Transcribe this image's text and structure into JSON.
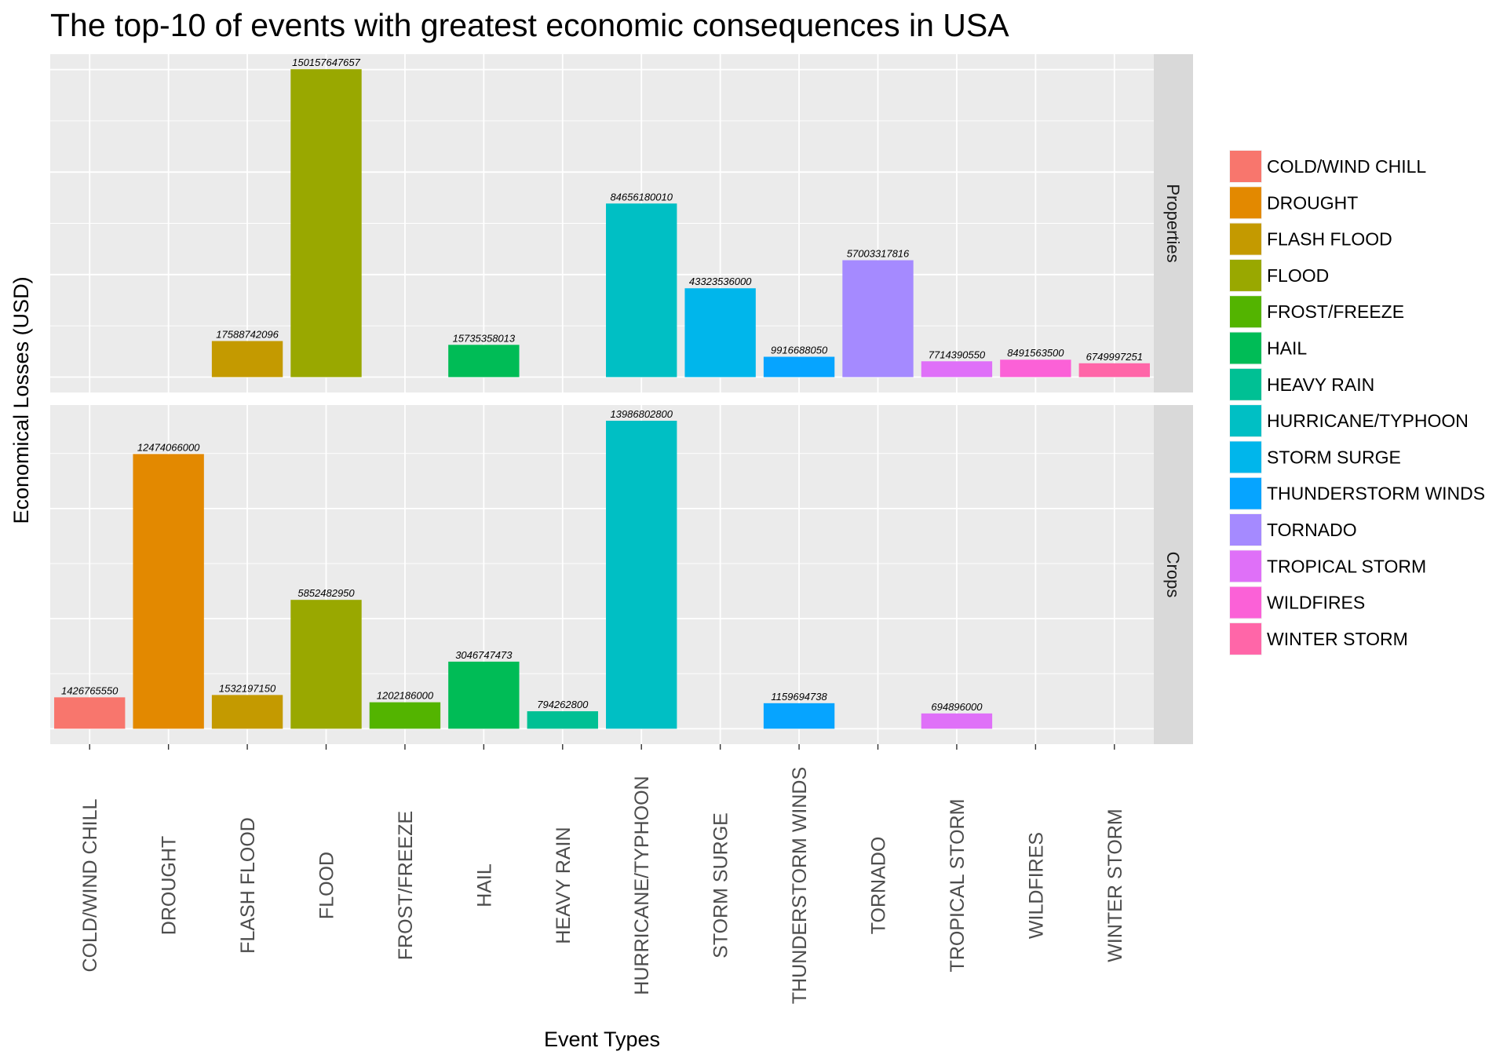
{
  "chart_data": {
    "type": "bar",
    "title": "The top-10 of events with greatest economic consequences in USA",
    "xlabel": "Event Types",
    "ylabel": "Economical Losses (USD)",
    "categories": [
      "COLD/WIND CHILL",
      "DROUGHT",
      "FLASH FLOOD",
      "FLOOD",
      "FROST/FREEZE",
      "HAIL",
      "HEAVY RAIN",
      "HURRICANE/TYPHOON",
      "STORM SURGE",
      "THUNDERSTORM WINDS",
      "TORNADO",
      "TROPICAL STORM",
      "WILDFIRES",
      "WINTER STORM"
    ],
    "colors": [
      "#F8766D",
      "#E38900",
      "#C49A00",
      "#99A800",
      "#53B400",
      "#00BC56",
      "#00C094",
      "#00BFC4",
      "#00B6EB",
      "#06A4FF",
      "#A58AFF",
      "#DF70F8",
      "#FB61D7",
      "#FF66A8"
    ],
    "facets": [
      {
        "label": "Properties",
        "values": [
          null,
          null,
          17588742096,
          150157647657,
          null,
          15735358013,
          null,
          84656180010,
          43323536000,
          9916688050,
          57003317816,
          7714390550,
          8491563500,
          6749997251
        ],
        "labels": [
          "",
          "",
          "17588742096",
          "150157647657",
          "",
          "15735358013",
          "",
          "84656180010",
          "43323536000",
          "9916688050",
          "57003317816",
          "7714390550",
          "8491563500",
          "6749997251"
        ],
        "ylim": [
          -7500000000,
          157500000000
        ]
      },
      {
        "label": "Crops",
        "values": [
          1426765550,
          12474066000,
          1532197150,
          5852482950,
          1202186000,
          3046747473,
          794262800,
          13986802800,
          null,
          1159694738,
          null,
          694896000,
          null,
          null
        ],
        "labels": [
          "1426765550",
          "12474066000",
          "1532197150",
          "5852482950",
          "1202186000",
          "3046747473",
          "794262800",
          "13986802800",
          "",
          "1159694738",
          "",
          "694896000",
          "",
          ""
        ],
        "ylim": [
          -700000000,
          14700000000
        ]
      }
    ],
    "legend": {
      "position": "right",
      "entries": [
        "COLD/WIND CHILL",
        "DROUGHT",
        "FLASH FLOOD",
        "FLOOD",
        "FROST/FREEZE",
        "HAIL",
        "HEAVY RAIN",
        "HURRICANE/TYPHOON",
        "STORM SURGE",
        "THUNDERSTORM WINDS",
        "TORNADO",
        "TROPICAL STORM",
        "WILDFIRES",
        "WINTER STORM"
      ]
    },
    "grid": true,
    "panel_background": "#EBEBEB",
    "strip_background": "#D9D9D9"
  }
}
